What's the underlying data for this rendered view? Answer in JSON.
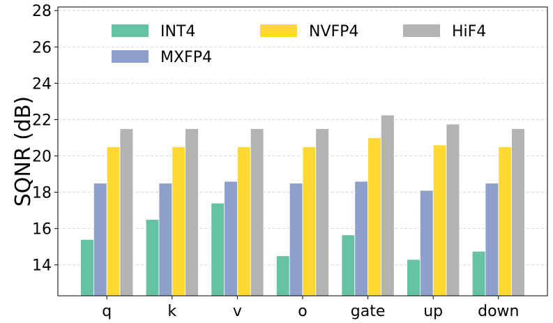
{
  "chart_data": {
    "type": "bar",
    "title": "",
    "xlabel": "",
    "ylabel": "SQNR (dB)",
    "ylim": [
      12.3,
      28.2
    ],
    "yticks": [
      14,
      16,
      18,
      20,
      22,
      24,
      26,
      28
    ],
    "grid": true,
    "legend_position": "top",
    "categories": [
      "q",
      "k",
      "v",
      "o",
      "gate",
      "up",
      "down"
    ],
    "series": [
      {
        "name": "INT4",
        "color": "#66c2a5",
        "values": [
          15.4,
          16.5,
          17.4,
          14.5,
          15.65,
          14.3,
          14.75
        ]
      },
      {
        "name": "MXFP4",
        "color": "#8da0cb",
        "values": [
          18.5,
          18.5,
          18.6,
          18.5,
          18.6,
          18.1,
          18.5
        ]
      },
      {
        "name": "NVFP4",
        "color": "#ffd92f",
        "values": [
          20.5,
          20.5,
          20.5,
          20.5,
          21.0,
          20.6,
          20.5
        ]
      },
      {
        "name": "HiF4",
        "color": "#b3b3b3",
        "values": [
          21.5,
          21.5,
          21.5,
          21.5,
          22.25,
          21.75,
          21.5
        ]
      }
    ]
  }
}
